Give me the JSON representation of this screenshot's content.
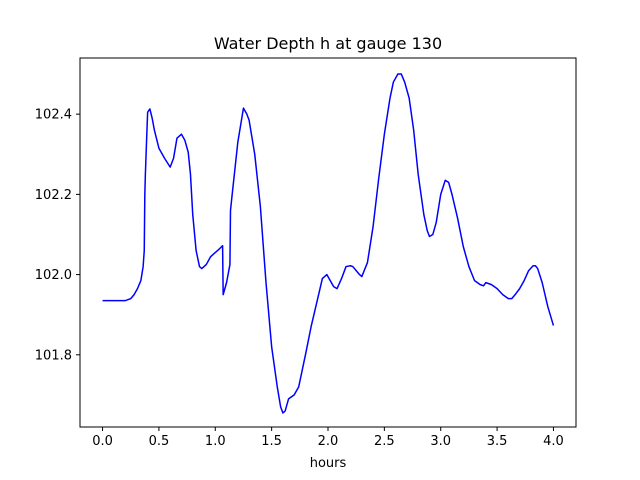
{
  "chart_data": {
    "type": "line",
    "title": "Water Depth h at gauge 130",
    "xlabel": "hours",
    "ylabel": "",
    "xlim": [
      -0.2,
      4.2
    ],
    "ylim": [
      101.62,
      102.54
    ],
    "xticks": [
      0.0,
      0.5,
      1.0,
      1.5,
      2.0,
      2.5,
      3.0,
      3.5,
      4.0
    ],
    "xtick_labels": [
      "0.0",
      "0.5",
      "1.0",
      "1.5",
      "2.0",
      "2.5",
      "3.0",
      "3.5",
      "4.0"
    ],
    "yticks": [
      101.8,
      102.0,
      102.2,
      102.4
    ],
    "ytick_labels": [
      "101.8",
      "102.0",
      "102.2",
      "102.4"
    ],
    "grid": false,
    "series": [
      {
        "color": "#0000ff",
        "x": [
          0.0,
          0.05,
          0.1,
          0.15,
          0.2,
          0.25,
          0.28,
          0.31,
          0.34,
          0.36,
          0.37,
          0.375,
          0.38,
          0.39,
          0.4,
          0.42,
          0.44,
          0.46,
          0.5,
          0.55,
          0.6,
          0.63,
          0.66,
          0.7,
          0.73,
          0.76,
          0.78,
          0.8,
          0.83,
          0.86,
          0.88,
          0.92,
          0.96,
          1.0,
          1.04,
          1.065,
          1.07,
          1.1,
          1.13,
          1.135,
          1.15,
          1.2,
          1.25,
          1.28,
          1.3,
          1.35,
          1.4,
          1.45,
          1.5,
          1.55,
          1.58,
          1.6,
          1.62,
          1.65,
          1.7,
          1.74,
          1.8,
          1.85,
          1.9,
          1.95,
          1.99,
          2.02,
          2.05,
          2.08,
          2.12,
          2.16,
          2.2,
          2.22,
          2.25,
          2.28,
          2.3,
          2.35,
          2.4,
          2.45,
          2.5,
          2.55,
          2.58,
          2.62,
          2.65,
          2.68,
          2.72,
          2.76,
          2.8,
          2.85,
          2.88,
          2.9,
          2.93,
          2.96,
          3.0,
          3.04,
          3.07,
          3.1,
          3.15,
          3.2,
          3.25,
          3.3,
          3.35,
          3.38,
          3.4,
          3.45,
          3.5,
          3.55,
          3.6,
          3.63,
          3.66,
          3.7,
          3.74,
          3.78,
          3.82,
          3.84,
          3.86,
          3.9,
          3.95,
          4.0
        ],
        "y": [
          101.935,
          101.935,
          101.935,
          101.935,
          101.935,
          101.94,
          101.95,
          101.965,
          101.985,
          102.02,
          102.06,
          102.2,
          102.25,
          102.33,
          102.405,
          102.413,
          102.39,
          102.36,
          102.315,
          102.29,
          102.268,
          102.29,
          102.34,
          102.35,
          102.335,
          102.305,
          102.25,
          102.15,
          102.06,
          102.02,
          102.015,
          102.025,
          102.045,
          102.055,
          102.065,
          102.072,
          101.95,
          101.98,
          102.025,
          102.16,
          102.2,
          102.33,
          102.415,
          102.4,
          102.385,
          102.3,
          102.17,
          101.98,
          101.82,
          101.72,
          101.67,
          101.655,
          101.66,
          101.69,
          101.7,
          101.72,
          101.8,
          101.87,
          101.93,
          101.99,
          102.0,
          101.985,
          101.97,
          101.965,
          101.99,
          102.02,
          102.022,
          102.02,
          102.01,
          102.0,
          101.995,
          102.03,
          102.12,
          102.24,
          102.35,
          102.44,
          102.48,
          102.5,
          102.5,
          102.48,
          102.44,
          102.36,
          102.25,
          102.15,
          102.11,
          102.095,
          102.1,
          102.13,
          102.2,
          102.235,
          102.23,
          102.2,
          102.14,
          102.07,
          102.02,
          101.985,
          101.975,
          101.972,
          101.98,
          101.975,
          101.965,
          101.95,
          101.94,
          101.94,
          101.95,
          101.965,
          101.985,
          102.01,
          102.022,
          102.022,
          102.015,
          101.98,
          101.92,
          101.873
        ]
      }
    ]
  }
}
